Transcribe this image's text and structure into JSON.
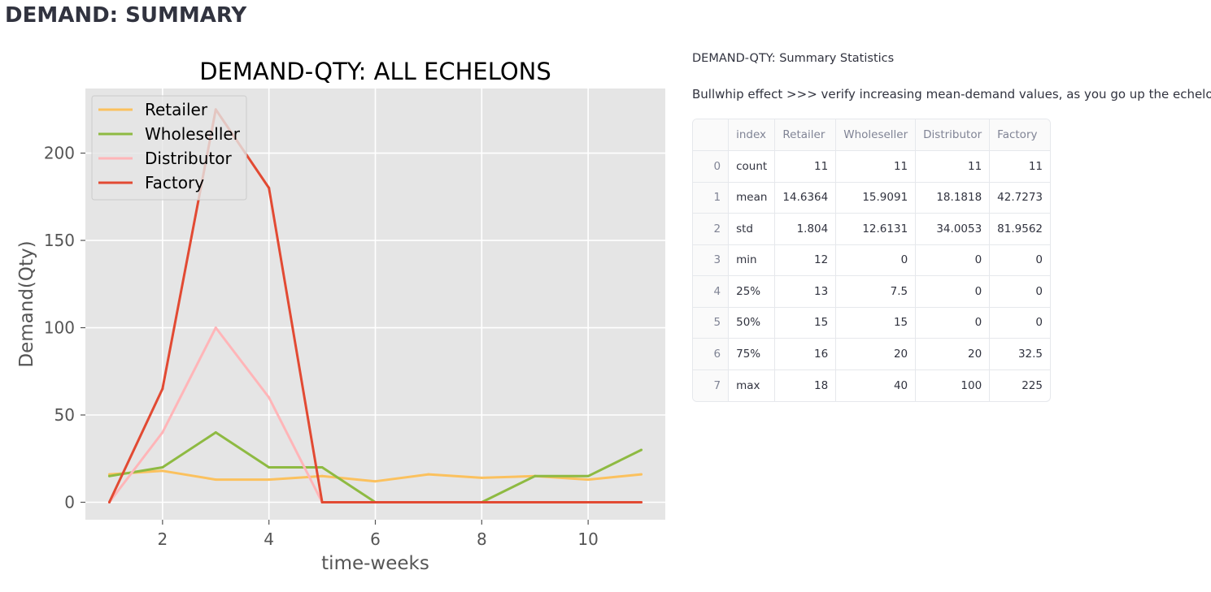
{
  "page": {
    "title": "DEMAND: SUMMARY"
  },
  "stats": {
    "heading": "DEMAND-QTY: Summary Statistics",
    "note": "Bullwhip effect >>> verify increasing mean-demand values, as you go up the echelon!",
    "table": {
      "columns": [
        "",
        "index",
        "Retailer",
        "Wholeseller",
        "Distributor",
        "Factory"
      ],
      "rows": [
        {
          "idx": "0",
          "stat": "count",
          "values": [
            "11",
            "11",
            "11",
            "11"
          ]
        },
        {
          "idx": "1",
          "stat": "mean",
          "values": [
            "14.6364",
            "15.9091",
            "18.1818",
            "42.7273"
          ]
        },
        {
          "idx": "2",
          "stat": "std",
          "values": [
            "1.804",
            "12.6131",
            "34.0053",
            "81.9562"
          ]
        },
        {
          "idx": "3",
          "stat": "min",
          "values": [
            "12",
            "0",
            "0",
            "0"
          ]
        },
        {
          "idx": "4",
          "stat": "25%",
          "values": [
            "13",
            "7.5",
            "0",
            "0"
          ]
        },
        {
          "idx": "5",
          "stat": "50%",
          "values": [
            "15",
            "15",
            "0",
            "0"
          ]
        },
        {
          "idx": "6",
          "stat": "75%",
          "values": [
            "16",
            "20",
            "20",
            "32.5"
          ]
        },
        {
          "idx": "7",
          "stat": "max",
          "values": [
            "18",
            "40",
            "100",
            "225"
          ]
        }
      ]
    }
  },
  "chart_data": {
    "type": "line",
    "title": "DEMAND-QTY: ALL ECHELONS",
    "xlabel": "time-weeks",
    "ylabel": "Demand(Qty)",
    "x": [
      1,
      2,
      3,
      4,
      5,
      6,
      7,
      8,
      9,
      10,
      11
    ],
    "xlim": [
      0.55,
      11.45
    ],
    "ylim": [
      -10,
      237
    ],
    "xticks": [
      2,
      4,
      6,
      8,
      10
    ],
    "yticks": [
      0,
      50,
      100,
      150,
      200
    ],
    "grid": true,
    "legend_position": "top-left",
    "style": "ggplot",
    "series": [
      {
        "name": "Retailer",
        "color": "#fbc15e",
        "values": [
          16,
          18,
          13,
          13,
          15,
          12,
          16,
          14,
          15,
          13,
          16
        ]
      },
      {
        "name": "Wholeseller",
        "color": "#8eba42",
        "values": [
          15,
          20,
          40,
          20,
          20,
          0,
          0,
          0,
          15,
          15,
          30
        ]
      },
      {
        "name": "Distributor",
        "color": "#ffb5b8",
        "values": [
          0,
          40,
          100,
          60,
          0,
          0,
          0,
          0,
          0,
          0,
          0
        ]
      },
      {
        "name": "Factory",
        "color": "#e24a33",
        "values": [
          0,
          65,
          225,
          180,
          0,
          0,
          0,
          0,
          0,
          0,
          0
        ]
      }
    ]
  }
}
